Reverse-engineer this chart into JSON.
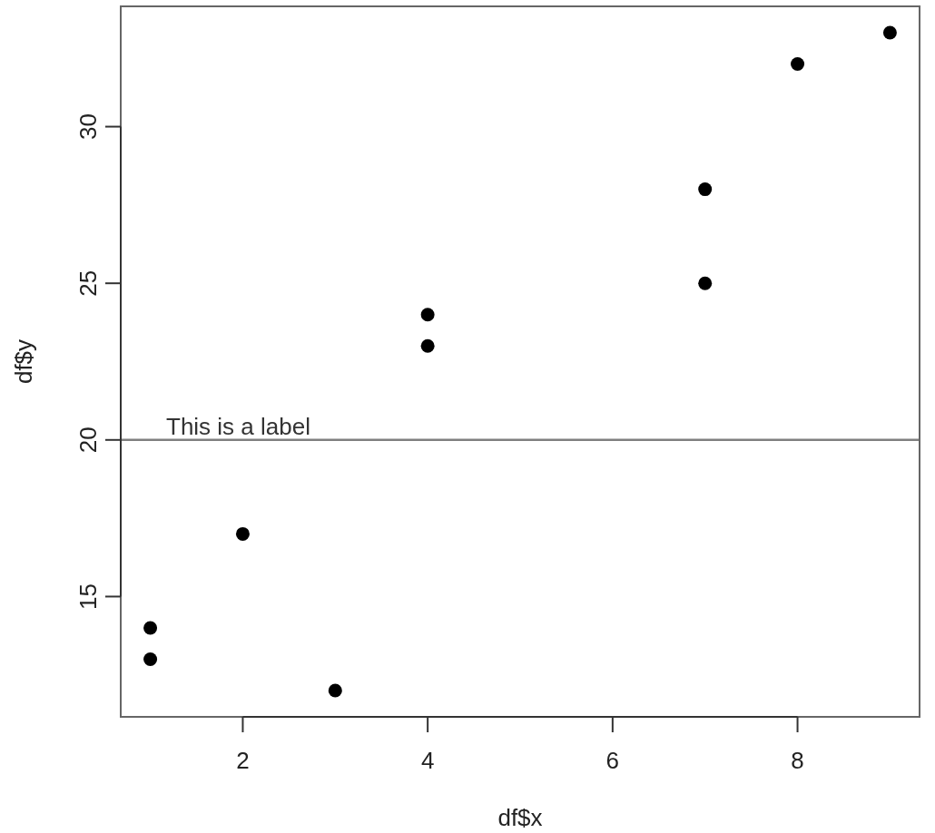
{
  "chart_data": {
    "type": "scatter",
    "xlabel": "df$x",
    "ylabel": "df$y",
    "x": [
      1,
      1,
      2,
      3,
      4,
      4,
      7,
      7,
      8,
      9
    ],
    "values": [
      13,
      14,
      17,
      12,
      23,
      24,
      25,
      28,
      32,
      33
    ],
    "color": "#000000",
    "marker": "circle",
    "xlim": [
      0.68,
      9.32
    ],
    "ylim": [
      11.16,
      33.84
    ],
    "xticks": [
      2,
      4,
      6,
      8
    ],
    "yticks": [
      15,
      20,
      25,
      30
    ],
    "ref_lines": [
      {
        "axis": "y",
        "value": 20,
        "label": "This is a label",
        "color": "#808080"
      }
    ]
  }
}
